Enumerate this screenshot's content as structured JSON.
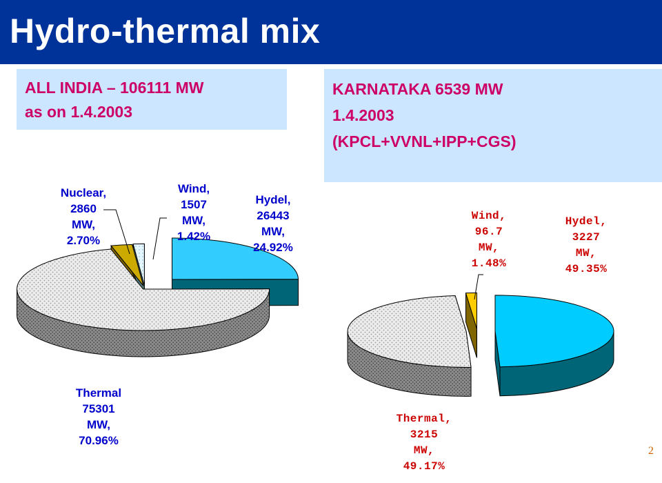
{
  "title": "Hydro-thermal mix",
  "page_number": "2",
  "colors": {
    "title_bg": "#003399",
    "box_bg": "#cce6ff",
    "box_text": "#cc0066"
  },
  "left_box": {
    "line1": "ALL INDIA – 106111 MW",
    "line2": "as on 1.4.2003"
  },
  "right_box": {
    "line1": "KARNATAKA  6539 MW",
    "line2": "1.4.2003",
    "line3": "(KPCL+VVNL+IPP+CGS)"
  },
  "chart_data": [
    {
      "type": "pie",
      "style": "3d-exploded",
      "title": "ALL INDIA – 106111 MW as on 1.4.2003",
      "slices": [
        {
          "name": "Hydel",
          "value": 26443,
          "unit": "MW",
          "percent": 24.92,
          "label": [
            "Hydel,",
            "26443",
            "MW,",
            "24.92%"
          ]
        },
        {
          "name": "Thermal",
          "value": 75301,
          "unit": "MW",
          "percent": 70.96,
          "label": [
            "Thermal",
            "75301",
            "MW,",
            "70.96%"
          ]
        },
        {
          "name": "Nuclear",
          "value": 2860,
          "unit": "MW",
          "percent": 2.7,
          "label": [
            "Nuclear,",
            "2860",
            "MW,",
            "2.70%"
          ]
        },
        {
          "name": "Wind",
          "value": 1507,
          "unit": "MW",
          "percent": 1.42,
          "label": [
            "Wind,",
            "1507",
            "MW,",
            "1.42%"
          ]
        }
      ]
    },
    {
      "type": "pie",
      "style": "3d-exploded",
      "title": "KARNATAKA 6539 MW 1.4.2003 (KPCL+VVNL+IPP+CGS)",
      "slices": [
        {
          "name": "Hydel",
          "value": 3227,
          "unit": "MW",
          "percent": 49.35,
          "label": [
            "Hydel,",
            "3227",
            "MW,",
            "49.35%"
          ]
        },
        {
          "name": "Thermal",
          "value": 3215,
          "unit": "MW",
          "percent": 49.17,
          "label": [
            "Thermal,",
            "3215",
            "MW,",
            "49.17%"
          ]
        },
        {
          "name": "Wind",
          "value": 96.7,
          "unit": "MW",
          "percent": 1.48,
          "label": [
            "Wind,",
            "96.7",
            "MW,",
            "1.48%"
          ]
        }
      ]
    }
  ]
}
